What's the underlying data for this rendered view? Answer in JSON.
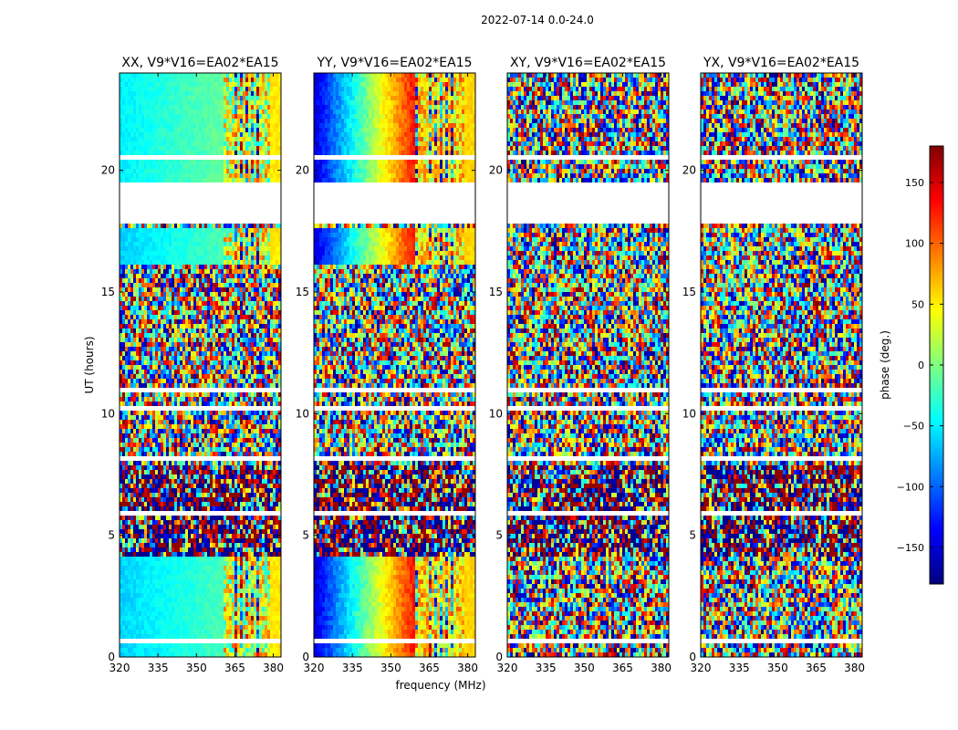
{
  "figure": {
    "title": "2022-07-14 0.0-24.0"
  },
  "chart_data": {
    "type": "heatmap",
    "xlabel": "frequency (MHz)",
    "ylabel": "UT (hours)",
    "x_ticks": [
      320,
      335,
      350,
      365,
      380
    ],
    "y_ticks": [
      0,
      5,
      10,
      15,
      20
    ],
    "xlim": [
      320,
      383
    ],
    "ylim": [
      0,
      24
    ],
    "colorbar": {
      "label": "phase (deg.)",
      "range": [
        -180,
        180
      ],
      "ticks": [
        -150,
        -100,
        -50,
        0,
        50,
        100,
        150
      ],
      "tick_labels": [
        "−150",
        "−100",
        "−50",
        "0",
        "50",
        "100",
        "150"
      ],
      "colormap": "jet",
      "stops": [
        "#00007f",
        "#0000ff",
        "#007fff",
        "#00ffff",
        "#7fff7f",
        "#ffff00",
        "#ff7f00",
        "#ff0000",
        "#7f0000"
      ]
    },
    "panels": [
      {
        "title": "XX, V9*V16=EA02*EA15",
        "pattern": "parallel-smooth-cyan"
      },
      {
        "title": "YY, V9*V16=EA02*EA15",
        "pattern": "parallel-gradient-blue-to-red"
      },
      {
        "title": "XY, V9*V16=EA02*EA15",
        "pattern": "cross-noise"
      },
      {
        "title": "YX, V9*V16=EA02*EA15",
        "pattern": "cross-noise"
      }
    ],
    "flagged_ut_ranges": [
      [
        17.8,
        19.5
      ]
    ],
    "noisy_ut_ranges": [
      [
        4.1,
        7.8
      ]
    ]
  }
}
